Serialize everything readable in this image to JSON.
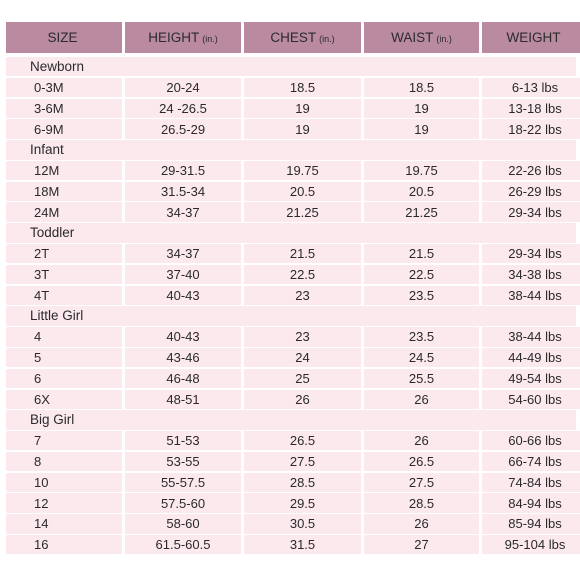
{
  "headers": [
    {
      "label": "SIZE",
      "unit": ""
    },
    {
      "label": "HEIGHT",
      "unit": "(in.)"
    },
    {
      "label": "CHEST",
      "unit": "(in.)"
    },
    {
      "label": "WAIST",
      "unit": "(in.)"
    },
    {
      "label": "WEIGHT",
      "unit": ""
    }
  ],
  "groups": [
    {
      "name": "Newborn",
      "rows": [
        [
          "0-3M",
          "20-24",
          "18.5",
          "18.5",
          "6-13 lbs"
        ],
        [
          "3-6M",
          "24 -26.5",
          "19",
          "19",
          "13-18 lbs"
        ],
        [
          "6-9M",
          "26.5-29",
          "19",
          "19",
          "18-22 lbs"
        ]
      ]
    },
    {
      "name": "Infant",
      "rows": [
        [
          "12M",
          "29-31.5",
          "19.75",
          "19.75",
          "22-26 lbs"
        ],
        [
          "18M",
          "31.5-34",
          "20.5",
          "20.5",
          "26-29 lbs"
        ],
        [
          "24M",
          "34-37",
          "21.25",
          "21.25",
          "29-34 lbs"
        ]
      ]
    },
    {
      "name": "Toddler",
      "rows": [
        [
          "2T",
          "34-37",
          "21.5",
          "21.5",
          "29-34 lbs"
        ],
        [
          "3T",
          "37-40",
          "22.5",
          "22.5",
          "34-38 lbs"
        ],
        [
          "4T",
          "40-43",
          "23",
          "23.5",
          "38-44 lbs"
        ]
      ]
    },
    {
      "name": "Little Girl",
      "rows": [
        [
          "4",
          "40-43",
          "23",
          "23.5",
          "38-44 lbs"
        ],
        [
          "5",
          "43-46",
          "24",
          "24.5",
          "44-49 lbs"
        ],
        [
          "6",
          "46-48",
          "25",
          "25.5",
          "49-54 lbs"
        ],
        [
          "6X",
          "48-51",
          "26",
          "26",
          "54-60 lbs"
        ]
      ]
    },
    {
      "name": "Big Girl",
      "rows": [
        [
          "7",
          "51-53",
          "26.5",
          "26",
          "60-66 lbs"
        ],
        [
          "8",
          "53-55",
          "27.5",
          "26.5",
          "66-74 lbs"
        ],
        [
          "10",
          "55-57.5",
          "28.5",
          "27.5",
          "74-84 lbs"
        ],
        [
          "12",
          "57.5-60",
          "29.5",
          "28.5",
          "84-94 lbs"
        ],
        [
          "14",
          "58-60",
          "30.5",
          "26",
          "85-94 lbs"
        ],
        [
          "16",
          "61.5-60.5",
          "31.5",
          "27",
          "95-104 lbs"
        ]
      ]
    }
  ],
  "colors": {
    "header_bg": "#b98aa0",
    "row_bg": "#fbe9ee"
  }
}
